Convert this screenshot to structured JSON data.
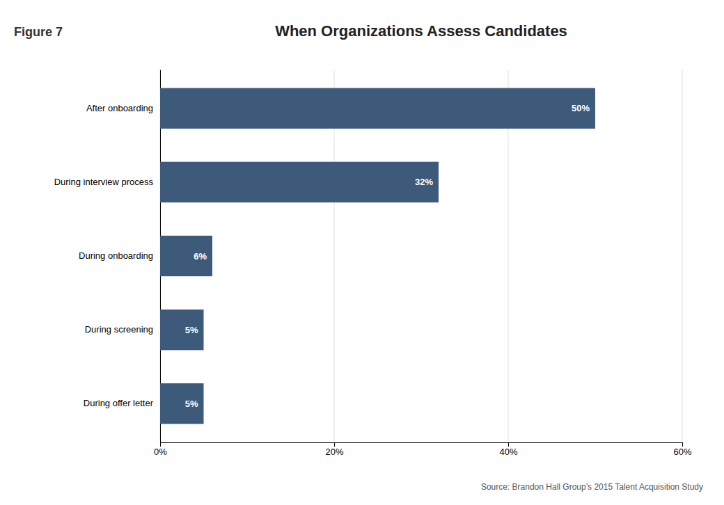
{
  "chart_data": {
    "type": "bar",
    "orientation": "horizontal",
    "title": "When Organizations Assess Candidates",
    "annotations": [
      "Figure 7",
      "Source: Brandon Hall Group’s 2015 Talent Acquisition Study"
    ],
    "categories": [
      "During offer letter",
      "During screening",
      "During onboarding",
      "During interview process",
      "After onboarding"
    ],
    "values": [
      5,
      5,
      6,
      32,
      50
    ],
    "value_labels": [
      "5%",
      "5%",
      "6%",
      "32%",
      "50%"
    ],
    "data_labels": true,
    "color": "#3D5A7A",
    "xlim": [
      0,
      60
    ],
    "xticks": [
      {
        "value": 0,
        "label": "0%"
      },
      {
        "value": 20,
        "label": "20%"
      },
      {
        "value": 40,
        "label": "40%"
      },
      {
        "value": 60,
        "label": "60%"
      }
    ],
    "grid": true
  }
}
